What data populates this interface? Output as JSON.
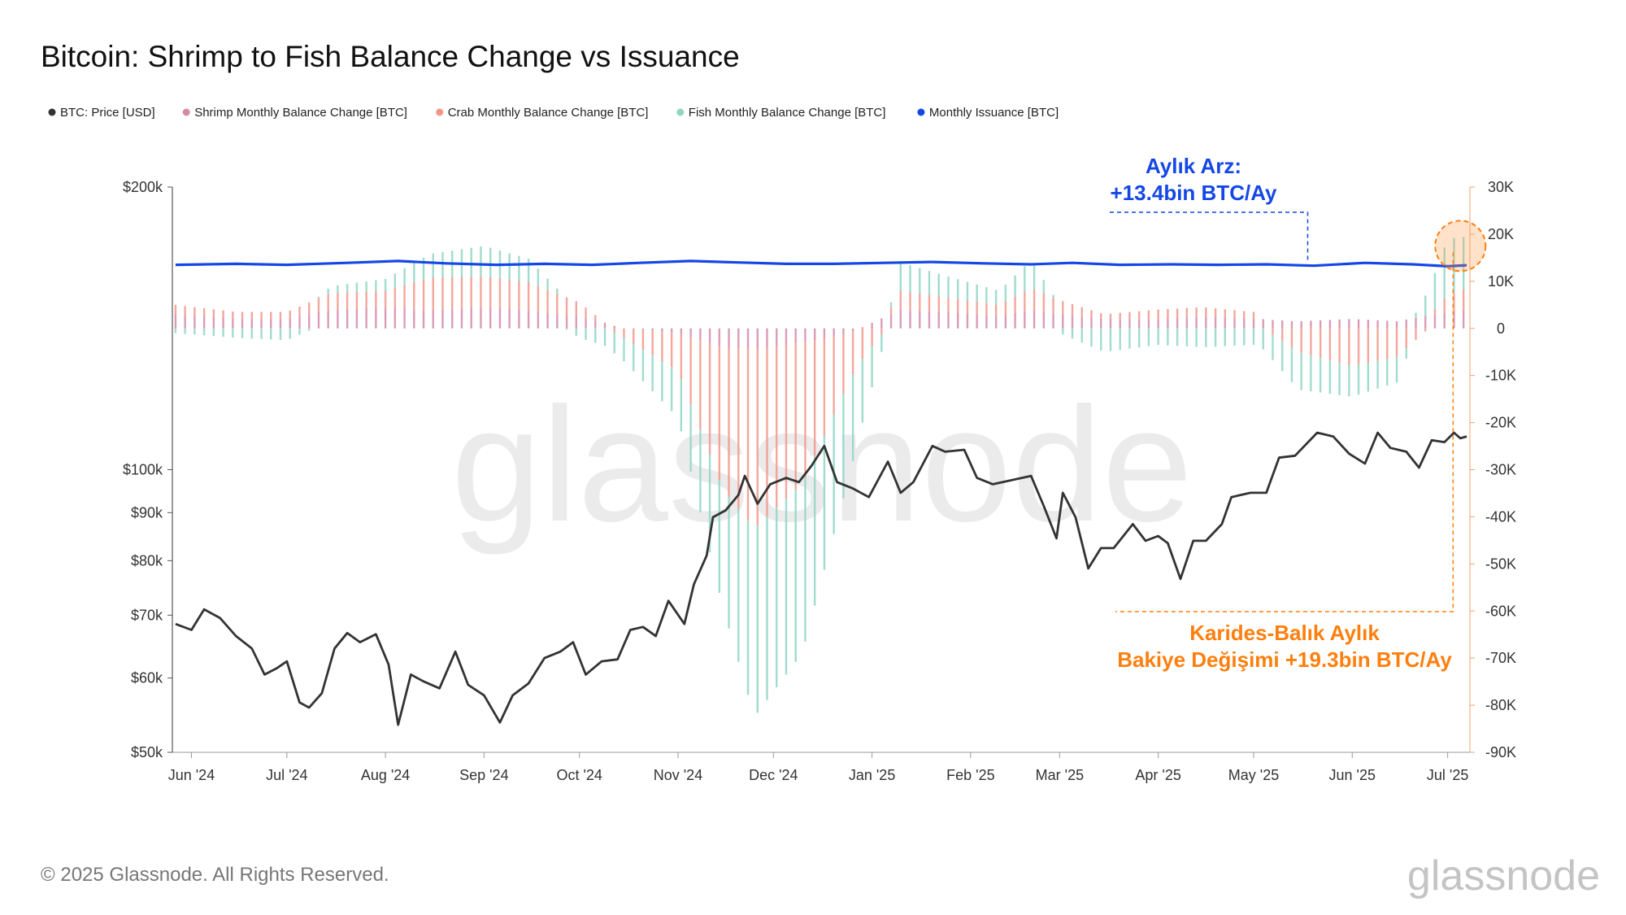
{
  "title": "Bitcoin: Shrimp to Fish Balance Change vs Issuance",
  "legend": [
    {
      "label": "BTC: Price [USD]",
      "color": "#333333"
    },
    {
      "label": "Shrimp Monthly Balance Change [BTC]",
      "color": "#d38ba8"
    },
    {
      "label": "Crab Monthly Balance Change [BTC]",
      "color": "#f2968a"
    },
    {
      "label": "Fish Monthly Balance Change [BTC]",
      "color": "#8fd6c4"
    },
    {
      "label": "Monthly Issuance [BTC]",
      "color": "#1447e6"
    }
  ],
  "annotations": {
    "issuance_line1": "Aylık Arz:",
    "issuance_line2": "+13.4bin BTC/Ay",
    "balance_line1": "Karides-Balık Aylık",
    "balance_line2": "Bakiye Değişimi +19.3bin BTC/Ay"
  },
  "footer": {
    "copyright": "© 2025 Glassnode. All Rights Reserved.",
    "brand": "glassnode",
    "watermark": "glassnode"
  },
  "chart_data": {
    "type": "bar",
    "x_labels": [
      "Jun '24",
      "Jul '24",
      "Aug '24",
      "Sep '24",
      "Oct '24",
      "Nov '24",
      "Dec '24",
      "Jan '25",
      "Feb '25",
      "Mar '25",
      "Apr '25",
      "May '25",
      "Jun '25",
      "Jul '25"
    ],
    "x_range": [
      "2024-05-26",
      "2025-07-08"
    ],
    "y_left": {
      "label": "BTC: Price [USD]",
      "scale": "log",
      "range": [
        50000,
        200000
      ],
      "ticks": [
        50000,
        60000,
        70000,
        80000,
        90000,
        100000,
        200000
      ],
      "tick_labels": [
        "$50k",
        "$60k",
        "$70k",
        "$80k",
        "$90k",
        "$100k",
        "$200k"
      ]
    },
    "y_right": {
      "label": "BTC",
      "scale": "linear",
      "range": [
        -90000,
        30000
      ],
      "ticks": [
        -90000,
        -80000,
        -70000,
        -60000,
        -50000,
        -40000,
        -30000,
        -20000,
        -10000,
        0,
        10000,
        20000,
        30000
      ],
      "tick_labels": [
        "-90K",
        "-80K",
        "-70K",
        "-60K",
        "-50K",
        "-40K",
        "-30K",
        "-20K",
        "-10K",
        "0",
        "10K",
        "20K",
        "30K"
      ]
    },
    "grid": false,
    "legend_position": "top-left",
    "series": [
      {
        "name": "BTC: Price [USD]",
        "type": "line",
        "axis": "left",
        "color": "#333333",
        "points": [
          [
            "2024-05-27",
            68500
          ],
          [
            "2024-06-01",
            67500
          ],
          [
            "2024-06-05",
            71000
          ],
          [
            "2024-06-10",
            69500
          ],
          [
            "2024-06-15",
            66500
          ],
          [
            "2024-06-20",
            64500
          ],
          [
            "2024-06-24",
            60500
          ],
          [
            "2024-06-28",
            61500
          ],
          [
            "2024-07-01",
            62500
          ],
          [
            "2024-07-05",
            56500
          ],
          [
            "2024-07-08",
            55800
          ],
          [
            "2024-07-12",
            57800
          ],
          [
            "2024-07-16",
            64500
          ],
          [
            "2024-07-20",
            67000
          ],
          [
            "2024-07-24",
            65500
          ],
          [
            "2024-07-29",
            66800
          ],
          [
            "2024-08-02",
            62000
          ],
          [
            "2024-08-05",
            53500
          ],
          [
            "2024-08-09",
            60500
          ],
          [
            "2024-08-13",
            59500
          ],
          [
            "2024-08-18",
            58500
          ],
          [
            "2024-08-23",
            64000
          ],
          [
            "2024-08-27",
            59000
          ],
          [
            "2024-09-01",
            57500
          ],
          [
            "2024-09-06",
            53800
          ],
          [
            "2024-09-10",
            57500
          ],
          [
            "2024-09-15",
            59200
          ],
          [
            "2024-09-20",
            63000
          ],
          [
            "2024-09-25",
            64000
          ],
          [
            "2024-09-29",
            65500
          ],
          [
            "2024-10-03",
            60500
          ],
          [
            "2024-10-08",
            62500
          ],
          [
            "2024-10-13",
            62800
          ],
          [
            "2024-10-17",
            67500
          ],
          [
            "2024-10-21",
            68000
          ],
          [
            "2024-10-25",
            66500
          ],
          [
            "2024-10-29",
            72500
          ],
          [
            "2024-11-03",
            68500
          ],
          [
            "2024-11-06",
            75500
          ],
          [
            "2024-11-10",
            81000
          ],
          [
            "2024-11-12",
            89000
          ],
          [
            "2024-11-16",
            90500
          ],
          [
            "2024-11-20",
            94000
          ],
          [
            "2024-11-22",
            98500
          ],
          [
            "2024-11-26",
            92000
          ],
          [
            "2024-11-30",
            96500
          ],
          [
            "2024-12-05",
            98000
          ],
          [
            "2024-12-09",
            97000
          ],
          [
            "2024-12-13",
            101000
          ],
          [
            "2024-12-17",
            106000
          ],
          [
            "2024-12-21",
            97000
          ],
          [
            "2024-12-26",
            95500
          ],
          [
            "2024-12-31",
            93500
          ],
          [
            "2025-01-06",
            102000
          ],
          [
            "2025-01-10",
            94500
          ],
          [
            "2025-01-14",
            97000
          ],
          [
            "2025-01-20",
            106000
          ],
          [
            "2025-01-24",
            104500
          ],
          [
            "2025-01-30",
            105000
          ],
          [
            "2025-02-03",
            98000
          ],
          [
            "2025-02-08",
            96500
          ],
          [
            "2025-02-14",
            97500
          ],
          [
            "2025-02-20",
            98500
          ],
          [
            "2025-02-24",
            91500
          ],
          [
            "2025-02-28",
            84500
          ],
          [
            "2025-03-02",
            94500
          ],
          [
            "2025-03-06",
            89000
          ],
          [
            "2025-03-10",
            78500
          ],
          [
            "2025-03-14",
            82500
          ],
          [
            "2025-03-18",
            82500
          ],
          [
            "2025-03-24",
            87500
          ],
          [
            "2025-03-28",
            84000
          ],
          [
            "2025-04-01",
            85000
          ],
          [
            "2025-04-04",
            83500
          ],
          [
            "2025-04-08",
            76500
          ],
          [
            "2025-04-12",
            84000
          ],
          [
            "2025-04-16",
            84000
          ],
          [
            "2025-04-21",
            87500
          ],
          [
            "2025-04-24",
            93500
          ],
          [
            "2025-04-30",
            94500
          ],
          [
            "2025-05-05",
            94500
          ],
          [
            "2025-05-09",
            103000
          ],
          [
            "2025-05-14",
            103500
          ],
          [
            "2025-05-21",
            109500
          ],
          [
            "2025-05-26",
            108500
          ],
          [
            "2025-05-31",
            104000
          ],
          [
            "2025-06-05",
            101500
          ],
          [
            "2025-06-09",
            109500
          ],
          [
            "2025-06-13",
            105500
          ],
          [
            "2025-06-18",
            104500
          ],
          [
            "2025-06-22",
            100500
          ],
          [
            "2025-06-26",
            107500
          ],
          [
            "2025-06-30",
            107000
          ],
          [
            "2025-07-03",
            109500
          ],
          [
            "2025-07-05",
            108000
          ],
          [
            "2025-07-07",
            108500
          ]
        ]
      },
      {
        "name": "Monthly Issuance [BTC]",
        "type": "line",
        "axis": "right",
        "color": "#1447e6",
        "points": [
          [
            "2024-05-27",
            13500
          ],
          [
            "2024-06-15",
            13700
          ],
          [
            "2024-07-01",
            13500
          ],
          [
            "2024-07-20",
            13900
          ],
          [
            "2024-08-05",
            14300
          ],
          [
            "2024-08-20",
            13800
          ],
          [
            "2024-09-05",
            13500
          ],
          [
            "2024-09-20",
            13700
          ],
          [
            "2024-10-05",
            13500
          ],
          [
            "2024-10-20",
            13900
          ],
          [
            "2024-11-05",
            14300
          ],
          [
            "2024-11-20",
            14000
          ],
          [
            "2024-12-05",
            13700
          ],
          [
            "2024-12-20",
            13700
          ],
          [
            "2025-01-05",
            13900
          ],
          [
            "2025-01-20",
            14100
          ],
          [
            "2025-02-05",
            13800
          ],
          [
            "2025-02-20",
            13600
          ],
          [
            "2025-03-05",
            13900
          ],
          [
            "2025-03-20",
            13500
          ],
          [
            "2025-04-05",
            13600
          ],
          [
            "2025-04-20",
            13500
          ],
          [
            "2025-05-05",
            13600
          ],
          [
            "2025-05-20",
            13300
          ],
          [
            "2025-06-05",
            13900
          ],
          [
            "2025-06-20",
            13600
          ],
          [
            "2025-07-01",
            13200
          ],
          [
            "2025-07-07",
            13400
          ]
        ]
      },
      {
        "name": "Shrimp Monthly Balance Change [BTC]",
        "type": "bar",
        "axis": "right",
        "color": "#d38ba8",
        "points": [
          [
            "2024-05-27",
            3000
          ],
          [
            "2024-06-15",
            2000
          ],
          [
            "2024-07-01",
            2000
          ],
          [
            "2024-07-15",
            4000
          ],
          [
            "2024-08-01",
            4500
          ],
          [
            "2024-08-15",
            3800
          ],
          [
            "2024-09-01",
            4500
          ],
          [
            "2024-09-15",
            3800
          ],
          [
            "2024-10-01",
            2500
          ],
          [
            "2024-10-15",
            0
          ],
          [
            "2024-11-01",
            -1000
          ],
          [
            "2024-11-15",
            -4000
          ],
          [
            "2024-11-25",
            -4500
          ],
          [
            "2024-12-10",
            -3000
          ],
          [
            "2024-12-25",
            -1000
          ],
          [
            "2025-01-10",
            4000
          ],
          [
            "2025-01-25",
            3500
          ],
          [
            "2025-02-10",
            2500
          ],
          [
            "2025-02-20",
            4000
          ],
          [
            "2025-03-01",
            3000
          ],
          [
            "2025-03-15",
            2000
          ],
          [
            "2025-04-01",
            2000
          ],
          [
            "2025-04-15",
            2500
          ],
          [
            "2025-05-01",
            2000
          ],
          [
            "2025-05-15",
            1500
          ],
          [
            "2025-06-01",
            2000
          ],
          [
            "2025-06-15",
            1500
          ],
          [
            "2025-07-01",
            3500
          ],
          [
            "2025-07-07",
            4000
          ]
        ]
      },
      {
        "name": "Crab Monthly Balance Change [BTC]",
        "type": "bar",
        "axis": "right",
        "color": "#f2968a",
        "points": [
          [
            "2024-05-27",
            2000
          ],
          [
            "2024-06-15",
            1500
          ],
          [
            "2024-07-01",
            1500
          ],
          [
            "2024-07-15",
            3500
          ],
          [
            "2024-08-01",
            3500
          ],
          [
            "2024-08-15",
            7000
          ],
          [
            "2024-09-01",
            6500
          ],
          [
            "2024-09-15",
            6000
          ],
          [
            "2024-10-01",
            3000
          ],
          [
            "2024-10-15",
            -2000
          ],
          [
            "2024-11-01",
            -8000
          ],
          [
            "2024-11-15",
            -30000
          ],
          [
            "2024-11-25",
            -38000
          ],
          [
            "2024-12-10",
            -30000
          ],
          [
            "2024-12-25",
            -10000
          ],
          [
            "2025-01-10",
            4000
          ],
          [
            "2025-01-25",
            3000
          ],
          [
            "2025-02-10",
            2500
          ],
          [
            "2025-02-20",
            4500
          ],
          [
            "2025-03-01",
            3000
          ],
          [
            "2025-03-15",
            1000
          ],
          [
            "2025-04-01",
            2000
          ],
          [
            "2025-04-15",
            2000
          ],
          [
            "2025-05-01",
            1500
          ],
          [
            "2025-05-15",
            -5000
          ],
          [
            "2025-06-01",
            -8000
          ],
          [
            "2025-06-15",
            -6000
          ],
          [
            "2025-07-01",
            3500
          ],
          [
            "2025-07-07",
            4500
          ]
        ]
      },
      {
        "name": "Fish Monthly Balance Change [BTC]",
        "type": "bar",
        "axis": "right",
        "color": "#8fd6c4",
        "points": [
          [
            "2024-05-27",
            -1000
          ],
          [
            "2024-06-15",
            -2000
          ],
          [
            "2024-07-01",
            -2500
          ],
          [
            "2024-07-15",
            1500
          ],
          [
            "2024-08-01",
            2500
          ],
          [
            "2024-08-15",
            5000
          ],
          [
            "2024-09-01",
            6500
          ],
          [
            "2024-09-15",
            5000
          ],
          [
            "2024-10-01",
            -2000
          ],
          [
            "2024-10-15",
            -5000
          ],
          [
            "2024-11-01",
            -10000
          ],
          [
            "2024-11-15",
            -25000
          ],
          [
            "2024-11-25",
            -40000
          ],
          [
            "2024-12-10",
            -36000
          ],
          [
            "2024-12-25",
            -20000
          ],
          [
            "2025-01-10",
            6000
          ],
          [
            "2025-01-25",
            4500
          ],
          [
            "2025-02-10",
            3000
          ],
          [
            "2025-02-20",
            6000
          ],
          [
            "2025-03-01",
            -1000
          ],
          [
            "2025-03-15",
            -5000
          ],
          [
            "2025-04-01",
            -3500
          ],
          [
            "2025-04-15",
            -4000
          ],
          [
            "2025-05-01",
            -3500
          ],
          [
            "2025-05-15",
            -8000
          ],
          [
            "2025-06-01",
            -6500
          ],
          [
            "2025-06-15",
            -5500
          ],
          [
            "2025-07-01",
            12000
          ],
          [
            "2025-07-07",
            11000
          ]
        ]
      }
    ]
  }
}
